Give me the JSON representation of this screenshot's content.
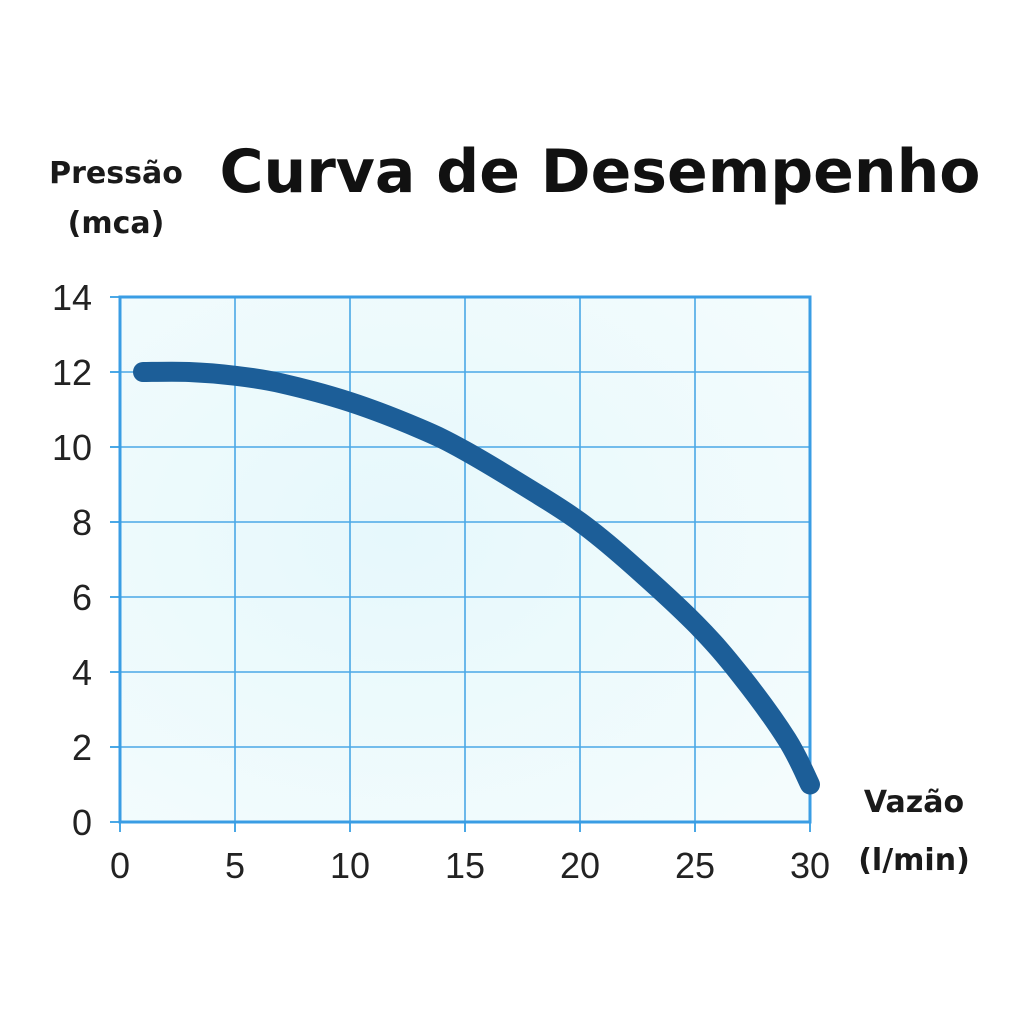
{
  "chart_data": {
    "type": "line",
    "title": "Curva de Desempenho",
    "ylabel_line1": "Pressão",
    "ylabel_line2": "(mca)",
    "xlabel_line1": "Vazão",
    "xlabel_line2": "(l/min)",
    "x_ticks": [
      0,
      5,
      10,
      15,
      20,
      25,
      30
    ],
    "y_ticks": [
      0,
      2,
      4,
      6,
      8,
      10,
      12,
      14
    ],
    "xlim": [
      0,
      30
    ],
    "ylim": [
      0,
      14
    ],
    "grid": true,
    "series": [
      {
        "x": [
          1,
          3,
          5,
          7,
          10,
          13,
          15,
          18,
          20,
          22,
          25,
          27,
          29,
          30
        ],
        "y": [
          12,
          12,
          11.9,
          11.7,
          11.2,
          10.5,
          9.9,
          8.8,
          8.0,
          7.0,
          5.3,
          3.9,
          2.2,
          1.0
        ]
      }
    ],
    "colors": {
      "line": "#1c5e98",
      "grid": "#4aa8e6",
      "frame": "#3a9de4",
      "plot_bg": "#e6f8fc",
      "plot_bg_edge": "#f4fcfd"
    }
  }
}
